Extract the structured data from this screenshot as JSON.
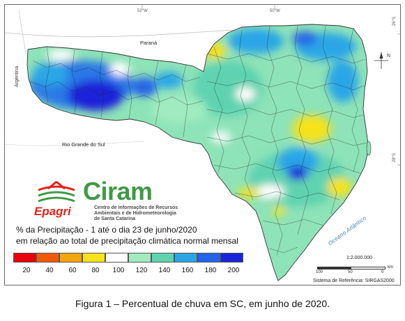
{
  "map": {
    "tick_labels": {
      "top_left": "52°W",
      "top_right": "50°W",
      "right_top": "26°S",
      "right_bottom": "28°S"
    },
    "regions": {
      "parana": "Paraná",
      "argentina": "Argentina",
      "rio_grande_do_sul": "Rio Grande do Sul",
      "ocean": "Oceano Atlântico"
    },
    "north_label": "N"
  },
  "logo": {
    "ciram": "Ciram",
    "epagri": "Epagri",
    "center_line1": "Centro de Informações de Recursos",
    "center_line2": "Ambientais e de Hidrometeorologia",
    "center_line3": "de Santa Catarina"
  },
  "caption_lines": {
    "line1": "% da Precipitação - 1 até o dia 23 de junho/2020",
    "line2": "em relação ao total de precipitação climática normal mensal"
  },
  "legend": {
    "colors": [
      "#e8000a",
      "#f05a0a",
      "#f3a50d",
      "#f4e21a",
      "#ffffff",
      "#a0ecc0",
      "#5fd3b0",
      "#2aa6e6",
      "#2563e8",
      "#1a24d8"
    ],
    "labels": [
      "20",
      "40",
      "60",
      "80",
      "100",
      "120",
      "140",
      "160",
      "180",
      "200"
    ]
  },
  "scale": {
    "ratio": "1:2.000.000",
    "labels": [
      "100",
      "50",
      "0"
    ],
    "unit": "km",
    "reference": "Sistema de Referência: SIRGAS2000"
  },
  "figure_caption": "Figura 1 – Percentual de chuva em SC, em junho de 2020."
}
